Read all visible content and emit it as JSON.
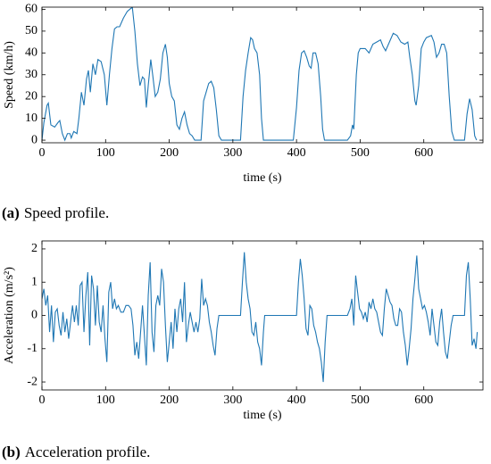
{
  "chart_data": [
    {
      "type": "line",
      "caption_label": "(a)",
      "caption": "Speed profile.",
      "xlabel": "time (s)",
      "ylabel": "Speed (km/h)",
      "xlim": [
        0,
        693
      ],
      "xticks": [
        0,
        100,
        200,
        300,
        400,
        500,
        600
      ],
      "ylim": [
        -1.2,
        61
      ],
      "yticks": [
        0,
        10,
        20,
        30,
        40,
        50,
        60
      ],
      "x": [
        0,
        3,
        8,
        10,
        14,
        20,
        25,
        28,
        32,
        36,
        40,
        44,
        46,
        50,
        55,
        58,
        62,
        66,
        70,
        73,
        76,
        80,
        84,
        88,
        93,
        98,
        102,
        106,
        110,
        114,
        118,
        122,
        128,
        134,
        138,
        142,
        146,
        150,
        154,
        158,
        161,
        164,
        167,
        171,
        174,
        178,
        182,
        186,
        190,
        194,
        197,
        200,
        204,
        208,
        212,
        216,
        220,
        224,
        228,
        232,
        236,
        240,
        250,
        254,
        258,
        262,
        266,
        270,
        274,
        278,
        282,
        300,
        312,
        316,
        320,
        324,
        328,
        331,
        334,
        338,
        342,
        345,
        348,
        360,
        395,
        400,
        404,
        408,
        412,
        416,
        420,
        423,
        426,
        430,
        434,
        438,
        441,
        444,
        480,
        485,
        488,
        490,
        494,
        497,
        500,
        508,
        514,
        520,
        526,
        532,
        536,
        540,
        546,
        552,
        558,
        564,
        570,
        575,
        578,
        582,
        586,
        588,
        592,
        596,
        600,
        604,
        612,
        616,
        620,
        624,
        628,
        632,
        636,
        640,
        644,
        648,
        664,
        668,
        672,
        676,
        680,
        683
      ],
      "series": [
        {
          "name": "Speed",
          "color": "#1f77b4",
          "values": [
            0,
            8,
            16,
            17,
            7,
            6,
            8,
            9,
            3,
            0,
            3,
            3,
            1,
            4,
            3,
            10,
            22,
            16,
            28,
            32,
            22,
            35,
            30,
            37,
            36,
            30,
            16,
            30,
            42,
            51,
            52,
            52,
            56,
            59,
            60,
            61,
            50,
            35,
            25,
            29,
            28,
            15,
            25,
            37,
            30,
            20,
            22,
            28,
            40,
            44,
            38,
            26,
            20,
            18,
            7,
            5,
            10,
            13,
            7,
            3,
            2,
            0,
            0,
            18,
            22,
            26,
            27,
            24,
            14,
            2,
            0,
            0,
            0,
            20,
            32,
            40,
            47,
            46,
            42,
            40,
            30,
            10,
            0,
            0,
            0,
            15,
            32,
            40,
            41,
            38,
            34,
            33,
            40,
            40,
            35,
            20,
            5,
            0,
            0,
            2,
            7,
            5,
            30,
            40,
            42,
            42,
            40,
            44,
            45,
            46,
            43,
            41,
            45,
            49,
            48,
            45,
            44,
            45,
            38,
            30,
            18,
            16,
            25,
            42,
            45,
            47,
            48,
            45,
            38,
            40,
            44,
            44,
            40,
            20,
            4,
            0,
            0,
            12,
            19,
            14,
            2,
            0
          ]
        }
      ]
    },
    {
      "type": "line",
      "caption_label": "(b)",
      "caption": "Acceleration profile.",
      "xlabel": "time (s)",
      "ylabel": "Acceleration (m/s²)",
      "xlim": [
        0,
        693
      ],
      "xticks": [
        0,
        100,
        200,
        300,
        400,
        500,
        600
      ],
      "ylim": [
        -2.24,
        2.24
      ],
      "yticks": [
        -2,
        -1,
        0,
        1,
        2
      ],
      "x": [
        0,
        3,
        6,
        9,
        12,
        15,
        18,
        21,
        24,
        27,
        30,
        33,
        36,
        39,
        42,
        45,
        48,
        51,
        54,
        57,
        60,
        63,
        66,
        69,
        72,
        75,
        78,
        81,
        84,
        87,
        90,
        93,
        96,
        99,
        102,
        105,
        108,
        111,
        114,
        117,
        120,
        124,
        128,
        132,
        136,
        140,
        143,
        146,
        149,
        152,
        155,
        158,
        161,
        164,
        167,
        170,
        173,
        176,
        179,
        182,
        185,
        188,
        191,
        194,
        197,
        200,
        203,
        206,
        209,
        212,
        215,
        218,
        221,
        224,
        227,
        230,
        233,
        236,
        239,
        242,
        245,
        248,
        251,
        254,
        257,
        260,
        263,
        266,
        269,
        272,
        275,
        278,
        312,
        315,
        318,
        321,
        324,
        327,
        330,
        333,
        336,
        339,
        342,
        345,
        348,
        350,
        400,
        403,
        406,
        409,
        412,
        415,
        418,
        421,
        424,
        427,
        430,
        433,
        436,
        439,
        442,
        445,
        448,
        480,
        484,
        487,
        490,
        493,
        496,
        499,
        502,
        505,
        508,
        511,
        514,
        517,
        520,
        523,
        526,
        529,
        532,
        535,
        538,
        541,
        544,
        547,
        550,
        553,
        556,
        559,
        562,
        565,
        568,
        571,
        574,
        577,
        580,
        583,
        586,
        589,
        592,
        595,
        598,
        601,
        604,
        607,
        610,
        613,
        616,
        619,
        622,
        625,
        628,
        631,
        634,
        637,
        640,
        643,
        646,
        664,
        667,
        670,
        673,
        676,
        679,
        682,
        684
      ],
      "series": [
        {
          "name": "Acceleration",
          "color": "#1f77b4",
          "values": [
            0.5,
            0.8,
            0.3,
            0.6,
            -0.5,
            0.3,
            -0.8,
            0.1,
            0.2,
            -0.3,
            -0.6,
            0.1,
            -0.5,
            -0.1,
            -0.7,
            -0.2,
            0.3,
            -0.2,
            0.3,
            -0.3,
            0.9,
            1.0,
            -0.5,
            0.6,
            1.3,
            -0.9,
            1.2,
            0.8,
            -0.3,
            0.9,
            -0.2,
            -0.5,
            0.3,
            -0.7,
            -1.4,
            0.7,
            1.0,
            0.2,
            0.5,
            0.2,
            0.3,
            0.1,
            0.1,
            0.3,
            0.3,
            0.2,
            -0.3,
            -1.2,
            -0.8,
            -1.3,
            -0.5,
            0.3,
            -0.6,
            -1.5,
            0.6,
            1.6,
            -0.5,
            -1.1,
            0.3,
            0.6,
            0.3,
            1.4,
            1.0,
            -0.3,
            -1.4,
            -0.8,
            -0.2,
            -1.0,
            0.2,
            -0.5,
            0.2,
            0.5,
            -0.2,
            1.0,
            -0.8,
            -0.3,
            0.1,
            -0.2,
            -0.5,
            -0.2,
            -0.5,
            -0.1,
            1.1,
            0.3,
            0.5,
            0.3,
            -0.2,
            -0.5,
            -0.9,
            -1.2,
            -0.4,
            0,
            0,
            1.0,
            1.9,
            1.0,
            0.5,
            0.2,
            -0.5,
            -0.6,
            -0.2,
            -0.8,
            -1.0,
            -1.5,
            -0.5,
            0,
            0,
            1.0,
            1.7,
            1.2,
            0.5,
            -0.4,
            -0.6,
            0.3,
            0.2,
            -0.3,
            -0.5,
            -0.8,
            -1.0,
            -1.4,
            -2.0,
            -0.8,
            0,
            0,
            0.2,
            0.5,
            -0.3,
            1.2,
            0.7,
            0.2,
            0.1,
            -0.1,
            0.1,
            -0.2,
            0.4,
            0.2,
            0.5,
            0.2,
            0.1,
            -0.2,
            -0.5,
            -0.6,
            0.2,
            0.8,
            0.6,
            0.4,
            0.3,
            -0.1,
            -0.3,
            -0.3,
            0.2,
            0.1,
            -0.5,
            -0.9,
            -1.5,
            -1.0,
            -0.4,
            0.5,
            1.1,
            1.8,
            0.8,
            0.5,
            0.2,
            0.3,
            0.1,
            -0.2,
            -0.6,
            0.2,
            -0.3,
            -0.8,
            -0.9,
            -0.2,
            0.2,
            -0.5,
            -1.1,
            -1.3,
            -0.8,
            -0.3,
            0,
            0,
            1.2,
            1.6,
            0.5,
            -0.9,
            -0.7,
            -1.0,
            -0.5
          ]
        }
      ]
    }
  ]
}
